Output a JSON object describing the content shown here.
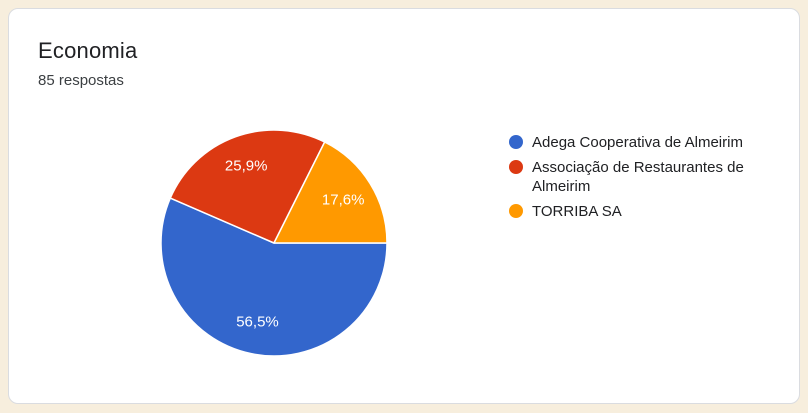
{
  "card": {
    "background": "#FFFFFF",
    "border_color": "#DADCE0",
    "page_background": "#F7EEDD"
  },
  "chart_data": {
    "type": "pie",
    "title": "Economia",
    "subtitle": "85 respostas",
    "legend_position": "right",
    "start_angle_deg": 0,
    "direction": "clockwise",
    "slice_label_type": "percent",
    "slice_label_color": "#FFFFFF",
    "slice_border_color": "#FFFFFF",
    "series": [
      {
        "label": "Adega Cooperativa de Almeirim",
        "percent": 56.5,
        "percent_label": "56,5%",
        "color": "#3366CC"
      },
      {
        "label": "Associação de Restaurantes de Almeirim",
        "percent": 25.9,
        "percent_label": "25,9%",
        "color": "#DC3912"
      },
      {
        "label": "TORRIBA SA",
        "percent": 17.6,
        "percent_label": "17,6%",
        "color": "#FF9900"
      }
    ]
  }
}
